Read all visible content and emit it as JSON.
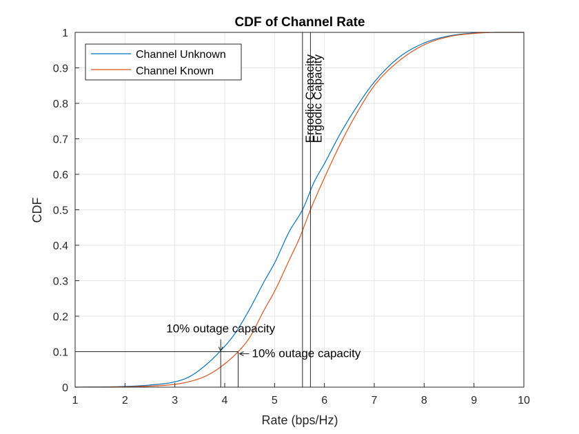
{
  "chart_data": {
    "type": "line",
    "title": "CDF of Channel Rate",
    "xlabel": "Rate (bps/Hz)",
    "ylabel": "CDF",
    "xlim": [
      1,
      10
    ],
    "ylim": [
      0,
      1
    ],
    "xticks": [
      "1",
      "2",
      "3",
      "4",
      "5",
      "6",
      "7",
      "8",
      "9",
      "10"
    ],
    "yticks": [
      "0",
      "0.1",
      "0.2",
      "0.3",
      "0.4",
      "0.5",
      "0.6",
      "0.7",
      "0.8",
      "0.9",
      "1"
    ],
    "grid": true,
    "legend_position": "top-left",
    "series": [
      {
        "name": "Channel Unknown",
        "color": "#0072BD",
        "x": [
          1.0,
          2.0,
          2.5,
          3.0,
          3.3,
          3.6,
          3.9,
          4.2,
          4.5,
          4.8,
          5.0,
          5.3,
          5.56,
          5.8,
          6.0,
          6.3,
          6.6,
          7.0,
          7.5,
          8.0,
          8.5,
          9.0,
          9.5,
          10.0
        ],
        "y": [
          0.0,
          0.002,
          0.006,
          0.015,
          0.03,
          0.06,
          0.1,
          0.15,
          0.22,
          0.3,
          0.35,
          0.44,
          0.5,
          0.58,
          0.63,
          0.71,
          0.78,
          0.86,
          0.93,
          0.97,
          0.99,
          0.998,
          1.0,
          1.0
        ]
      },
      {
        "name": "Channel Known",
        "color": "#D95319",
        "x": [
          1.0,
          2.0,
          2.5,
          3.0,
          3.3,
          3.6,
          3.9,
          4.27,
          4.5,
          4.8,
          5.0,
          5.3,
          5.5,
          5.72,
          6.0,
          6.3,
          6.6,
          7.0,
          7.5,
          8.0,
          8.5,
          9.0,
          9.5,
          10.0
        ],
        "y": [
          0.0,
          0.001,
          0.003,
          0.008,
          0.016,
          0.03,
          0.055,
          0.1,
          0.14,
          0.22,
          0.27,
          0.36,
          0.42,
          0.5,
          0.59,
          0.68,
          0.76,
          0.85,
          0.92,
          0.965,
          0.988,
          0.997,
          1.0,
          1.0
        ]
      }
    ],
    "reference_lines": [
      {
        "type": "vertical",
        "x": 5.56,
        "label": "Ergodic Capacity"
      },
      {
        "type": "vertical",
        "x": 5.72,
        "label": "Ergodic Capacity"
      },
      {
        "type": "horizontal",
        "y": 0.1
      },
      {
        "type": "vertical-drop",
        "x": 3.92
      },
      {
        "type": "vertical-drop",
        "x": 4.27
      }
    ],
    "annotations": [
      {
        "text": "10% outage capacity",
        "x": 3.92,
        "y": 0.1
      },
      {
        "text": "10% outage capacity",
        "x": 4.27,
        "y": 0.1
      }
    ]
  }
}
